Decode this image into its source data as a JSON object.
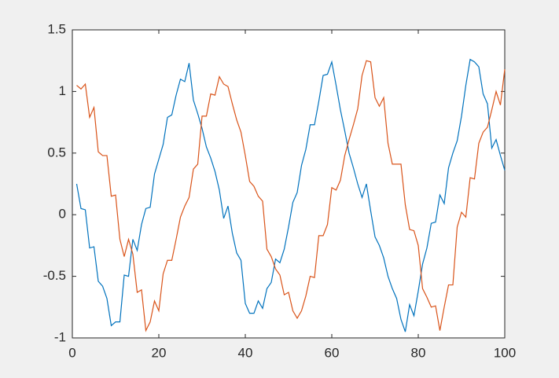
{
  "chart_data": {
    "type": "line",
    "x": [
      1,
      2,
      3,
      4,
      5,
      6,
      7,
      8,
      9,
      10,
      11,
      12,
      13,
      14,
      15,
      16,
      17,
      18,
      19,
      20,
      21,
      22,
      23,
      24,
      25,
      26,
      27,
      28,
      29,
      30,
      31,
      32,
      33,
      34,
      35,
      36,
      37,
      38,
      39,
      40,
      41,
      42,
      43,
      44,
      45,
      46,
      47,
      48,
      49,
      50,
      51,
      52,
      53,
      54,
      55,
      56,
      57,
      58,
      59,
      60,
      61,
      62,
      63,
      64,
      65,
      66,
      67,
      68,
      69,
      70,
      71,
      72,
      73,
      74,
      75,
      76,
      77,
      78,
      79,
      80,
      81,
      82,
      83,
      84,
      85,
      86,
      87,
      88,
      89,
      90,
      91,
      92,
      93,
      94,
      95,
      96,
      97,
      98,
      99,
      100
    ],
    "series": [
      {
        "color": "#0072BD",
        "values": [
          0.25,
          0.05,
          0.04,
          -0.27,
          -0.26,
          -0.54,
          -0.58,
          -0.68,
          -0.9,
          -0.87,
          -0.87,
          -0.49,
          -0.5,
          -0.2,
          -0.29,
          -0.08,
          0.05,
          0.06,
          0.33,
          0.45,
          0.57,
          0.79,
          0.81,
          0.97,
          1.1,
          1.08,
          1.23,
          0.93,
          0.82,
          0.7,
          0.55,
          0.46,
          0.35,
          0.2,
          -0.03,
          0.07,
          -0.15,
          -0.31,
          -0.37,
          -0.72,
          -0.8,
          -0.8,
          -0.7,
          -0.76,
          -0.6,
          -0.55,
          -0.36,
          -0.39,
          -0.28,
          -0.1,
          0.1,
          0.18,
          0.4,
          0.53,
          0.73,
          0.73,
          0.92,
          1.13,
          1.14,
          1.24,
          1.05,
          0.85,
          0.68,
          0.5,
          0.38,
          0.25,
          0.14,
          0.25,
          0.03,
          -0.18,
          -0.25,
          -0.35,
          -0.5,
          -0.6,
          -0.68,
          -0.85,
          -0.95,
          -0.73,
          -0.82,
          -0.62,
          -0.4,
          -0.27,
          -0.07,
          -0.06,
          0.16,
          0.09,
          0.38,
          0.5,
          0.6,
          0.8,
          1.05,
          1.26,
          1.24,
          1.2,
          0.98,
          0.9,
          0.54,
          0.61,
          0.48,
          0.36
        ]
      },
      {
        "color": "#D95319",
        "values": [
          1.05,
          1.02,
          1.06,
          0.79,
          0.87,
          0.51,
          0.48,
          0.48,
          0.15,
          0.16,
          -0.2,
          -0.34,
          -0.2,
          -0.32,
          -0.63,
          -0.61,
          -0.94,
          -0.87,
          -0.7,
          -0.78,
          -0.48,
          -0.37,
          -0.37,
          -0.2,
          -0.02,
          0.07,
          0.14,
          0.37,
          0.41,
          0.8,
          0.8,
          0.98,
          0.97,
          1.12,
          1.06,
          1.04,
          0.9,
          0.77,
          0.67,
          0.48,
          0.27,
          0.23,
          0.15,
          0.11,
          -0.28,
          -0.34,
          -0.44,
          -0.49,
          -0.65,
          -0.63,
          -0.78,
          -0.84,
          -0.78,
          -0.66,
          -0.5,
          -0.51,
          -0.17,
          -0.17,
          -0.08,
          0.22,
          0.2,
          0.28,
          0.48,
          0.61,
          0.73,
          0.86,
          1.13,
          1.25,
          1.24,
          0.95,
          0.88,
          0.95,
          0.58,
          0.41,
          0.41,
          0.41,
          0.08,
          -0.12,
          -0.13,
          -0.25,
          -0.6,
          -0.67,
          -0.75,
          -0.74,
          -0.94,
          -0.75,
          -0.57,
          -0.57,
          -0.1,
          0.02,
          -0.02,
          0.3,
          0.29,
          0.58,
          0.67,
          0.71,
          0.85,
          1.0,
          0.89,
          1.18
        ]
      }
    ],
    "xlim": [
      0,
      100
    ],
    "xticks": [
      0,
      20,
      40,
      60,
      80,
      100
    ],
    "ylim": [
      -1,
      1.5
    ],
    "yticks": [
      -1,
      -0.5,
      0,
      0.5,
      1,
      1.5
    ]
  }
}
